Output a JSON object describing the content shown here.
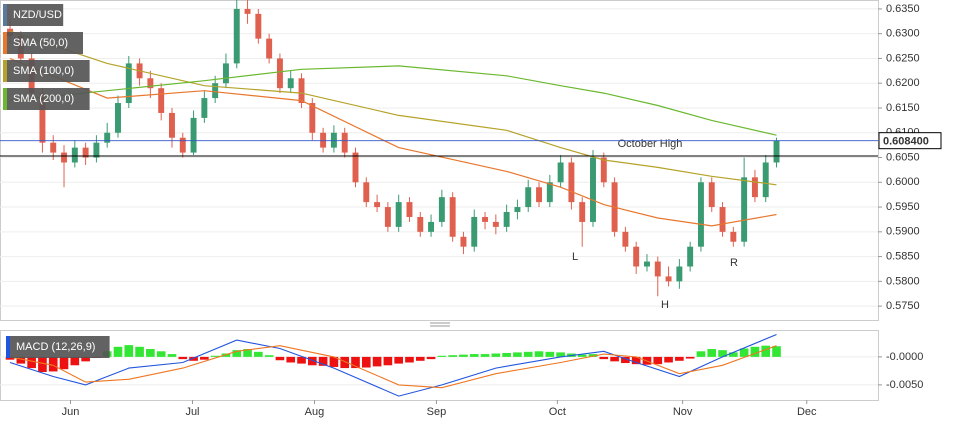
{
  "chart_data": [
    {
      "type": "candlestick",
      "xlim": [
        -0.93,
        80.4
      ],
      "ylim": [
        0.5722,
        0.6368
      ],
      "grid": true,
      "yticks": [
        {
          "value": 0.575,
          "label": "0.5750"
        },
        {
          "value": 0.58,
          "label": "0.5800"
        },
        {
          "value": 0.585,
          "label": "0.5850"
        },
        {
          "value": 0.59,
          "label": "0.5900"
        },
        {
          "value": 0.595,
          "label": "0.5950"
        },
        {
          "value": 0.6,
          "label": "0.6000"
        },
        {
          "value": 0.605,
          "label": "0.6050"
        },
        {
          "value": 0.61,
          "label": "0.6100"
        },
        {
          "value": 0.615,
          "label": "0.6150"
        },
        {
          "value": 0.62,
          "label": "0.6200"
        },
        {
          "value": 0.625,
          "label": "0.6250"
        },
        {
          "value": 0.63,
          "label": "0.6300"
        },
        {
          "value": 0.635,
          "label": "0.6350"
        }
      ],
      "series": [
        {
          "name": "NZD/USD",
          "type": "candlestick",
          "color": "#5b7a9a",
          "up_color": "#3a9a72",
          "down_color": "#e0604f",
          "ohlc": [
            [
              0.631,
              0.633,
              0.628,
              0.6295
            ],
            [
              0.6295,
              0.6305,
              0.624,
              0.625
            ],
            [
              0.625,
              0.626,
              0.617,
              0.618
            ],
            [
              0.618,
              0.619,
              0.606,
              0.608
            ],
            [
              0.608,
              0.6095,
              0.6045,
              0.606
            ],
            [
              0.606,
              0.6075,
              0.599,
              0.604
            ],
            [
              0.604,
              0.6085,
              0.603,
              0.607
            ],
            [
              0.607,
              0.608,
              0.6035,
              0.605
            ],
            [
              0.605,
              0.6095,
              0.604,
              0.608
            ],
            [
              0.608,
              0.612,
              0.607,
              0.61
            ],
            [
              0.61,
              0.6175,
              0.609,
              0.616
            ],
            [
              0.616,
              0.6255,
              0.615,
              0.624
            ],
            [
              0.624,
              0.625,
              0.6195,
              0.621
            ],
            [
              0.621,
              0.6225,
              0.617,
              0.619
            ],
            [
              0.619,
              0.62,
              0.6125,
              0.614
            ],
            [
              0.614,
              0.615,
              0.607,
              0.609
            ],
            [
              0.609,
              0.61,
              0.605,
              0.606
            ],
            [
              0.606,
              0.6145,
              0.6055,
              0.613
            ],
            [
              0.613,
              0.6185,
              0.612,
              0.617
            ],
            [
              0.617,
              0.6215,
              0.616,
              0.62
            ],
            [
              0.62,
              0.626,
              0.619,
              0.624
            ],
            [
              0.624,
              0.637,
              0.623,
              0.635
            ],
            [
              0.635,
              0.637,
              0.632,
              0.634
            ],
            [
              0.634,
              0.635,
              0.628,
              0.629
            ],
            [
              0.629,
              0.63,
              0.624,
              0.625
            ],
            [
              0.625,
              0.626,
              0.618,
              0.619
            ],
            [
              0.619,
              0.6225,
              0.618,
              0.621
            ],
            [
              0.621,
              0.622,
              0.615,
              0.616
            ],
            [
              0.616,
              0.617,
              0.6085,
              0.61
            ],
            [
              0.61,
              0.611,
              0.606,
              0.607
            ],
            [
              0.607,
              0.6115,
              0.606,
              0.61
            ],
            [
              0.61,
              0.611,
              0.605,
              0.606
            ],
            [
              0.606,
              0.607,
              0.599,
              0.6
            ],
            [
              0.6,
              0.601,
              0.595,
              0.596
            ],
            [
              0.596,
              0.5975,
              0.594,
              0.595
            ],
            [
              0.595,
              0.596,
              0.59,
              0.591
            ],
            [
              0.591,
              0.5975,
              0.59,
              0.596
            ],
            [
              0.596,
              0.597,
              0.592,
              0.593
            ],
            [
              0.593,
              0.594,
              0.589,
              0.59
            ],
            [
              0.59,
              0.5935,
              0.589,
              0.592
            ],
            [
              0.592,
              0.5985,
              0.591,
              0.597
            ],
            [
              0.597,
              0.598,
              0.588,
              0.589
            ],
            [
              0.589,
              0.59,
              0.5855,
              0.587
            ],
            [
              0.587,
              0.5945,
              0.586,
              0.593
            ],
            [
              0.593,
              0.594,
              0.5905,
              0.592
            ],
            [
              0.592,
              0.5935,
              0.5895,
              0.591
            ],
            [
              0.591,
              0.5955,
              0.59,
              0.594
            ],
            [
              0.594,
              0.5965,
              0.5925,
              0.595
            ],
            [
              0.595,
              0.6005,
              0.594,
              0.599
            ],
            [
              0.599,
              0.6,
              0.595,
              0.596
            ],
            [
              0.596,
              0.6015,
              0.595,
              0.6
            ],
            [
              0.6,
              0.6055,
              0.599,
              0.604
            ],
            [
              0.604,
              0.605,
              0.5945,
              0.596
            ],
            [
              0.596,
              0.597,
              0.587,
              0.592
            ],
            [
              0.592,
              0.6065,
              0.591,
              0.605
            ],
            [
              0.605,
              0.606,
              0.599,
              0.6
            ],
            [
              0.6,
              0.601,
              0.589,
              0.59
            ],
            [
              0.59,
              0.591,
              0.586,
              0.587
            ],
            [
              0.587,
              0.588,
              0.5815,
              0.583
            ],
            [
              0.583,
              0.5855,
              0.582,
              0.584
            ],
            [
              0.584,
              0.585,
              0.577,
              0.581
            ],
            [
              0.581,
              0.583,
              0.579,
              0.58
            ],
            [
              0.58,
              0.5845,
              0.5785,
              0.583
            ],
            [
              0.583,
              0.588,
              0.582,
              0.587
            ],
            [
              0.587,
              0.601,
              0.586,
              0.6
            ],
            [
              0.6,
              0.601,
              0.594,
              0.595
            ],
            [
              0.595,
              0.596,
              0.589,
              0.59
            ],
            [
              0.59,
              0.591,
              0.587,
              0.588
            ],
            [
              0.588,
              0.605,
              0.587,
              0.601
            ],
            [
              0.601,
              0.6025,
              0.596,
              0.597
            ],
            [
              0.597,
              0.6055,
              0.596,
              0.604
            ],
            [
              0.604,
              0.609,
              0.603,
              0.6084
            ]
          ]
        },
        {
          "name": "SMA (50,0)",
          "type": "line",
          "color": "#e8772e",
          "x": [
            0,
            9,
            18,
            27,
            36,
            46,
            51,
            55,
            60,
            65,
            71
          ],
          "values": [
            0.625,
            0.617,
            0.6185,
            0.6165,
            0.607,
            0.6022,
            0.599,
            0.5955,
            0.5928,
            0.5912,
            0.5935
          ]
        },
        {
          "name": "SMA (100,0)",
          "type": "line",
          "color": "#b5a228",
          "x": [
            0,
            9,
            18,
            27,
            36,
            46,
            51,
            55,
            60,
            65,
            71
          ],
          "values": [
            0.6305,
            0.624,
            0.6195,
            0.618,
            0.6135,
            0.6105,
            0.607,
            0.6045,
            0.603,
            0.6012,
            0.5995
          ]
        },
        {
          "name": "SMA (200,0)",
          "type": "line",
          "color": "#6ab82f",
          "x": [
            0,
            9,
            18,
            27,
            36,
            46,
            51,
            55,
            60,
            65,
            71
          ],
          "values": [
            0.6165,
            0.6185,
            0.6205,
            0.6228,
            0.6235,
            0.6215,
            0.6195,
            0.618,
            0.6155,
            0.6125,
            0.6095
          ]
        }
      ],
      "hlines": [
        {
          "label": "October High",
          "value": 0.6053,
          "color": "#000000"
        }
      ],
      "last_price": {
        "value": 0.6084,
        "value_label": "0.608400",
        "color": "#3355cc"
      },
      "annotations": [
        "L",
        "H",
        "R"
      ]
    },
    {
      "type": "macd",
      "name": "MACD (12,26,9)",
      "xlim": [
        -0.93,
        80.4
      ],
      "ylim": [
        -0.0077,
        0.0048
      ],
      "yticks": [
        {
          "value": 0,
          "label": "-0.0000"
        },
        {
          "value": -0.005,
          "label": "-0.0050"
        }
      ],
      "xticks": [
        {
          "value": 5.6,
          "label": "Jun"
        },
        {
          "value": 16.9,
          "label": "Jul"
        },
        {
          "value": 28.2,
          "label": "Aug"
        },
        {
          "value": 39.5,
          "label": "Sep"
        },
        {
          "value": 50.7,
          "label": "Oct"
        },
        {
          "value": 62.3,
          "label": "Nov"
        },
        {
          "value": 73.8,
          "label": "Dec"
        }
      ],
      "histogram": {
        "up_color": "#33e633",
        "down_color": "#ee1111",
        "values": [
          -0.0005,
          -0.0012,
          -0.002,
          -0.0027,
          -0.0026,
          -0.0022,
          -0.0015,
          -0.0008,
          -0.0002,
          0.001,
          0.0018,
          0.0021,
          0.0018,
          0.0014,
          0.001,
          0.0005,
          -0.0004,
          -0.0007,
          -0.0005,
          0.0002,
          0.0006,
          0.0012,
          0.0014,
          0.0009,
          0.0003,
          -0.0006,
          -0.001,
          -0.0012,
          -0.0015,
          -0.0016,
          -0.0018,
          -0.002,
          -0.002,
          -0.0019,
          -0.0017,
          -0.0015,
          -0.0012,
          -0.001,
          -0.0007,
          -0.0004,
          0.0002,
          0.0003,
          0.0004,
          0.0005,
          0.0005,
          0.0006,
          0.0007,
          0.0008,
          0.0009,
          0.001,
          0.0009,
          0.0008,
          0.0006,
          0.0004,
          0.0005,
          -0.0004,
          -0.0008,
          -0.0011,
          -0.0013,
          -0.0014,
          -0.0013,
          -0.001,
          -0.0007,
          -0.0003,
          0.001,
          0.0014,
          0.0012,
          0.0008,
          0.0015,
          0.0018,
          0.002,
          0.0019
        ]
      },
      "lines": [
        {
          "color": "#2255dd",
          "x": [
            0,
            4,
            7,
            11,
            16,
            21,
            25,
            30,
            36,
            40,
            45,
            51,
            55,
            58,
            62,
            66,
            71
          ],
          "values": [
            -0.001,
            -0.0035,
            -0.005,
            -0.002,
            -0.001,
            0.003,
            0.0015,
            -0.002,
            -0.007,
            -0.005,
            -0.002,
            0,
            0.001,
            -0.001,
            -0.0035,
            0,
            0.004
          ]
        },
        {
          "color": "#ee7722",
          "x": [
            0,
            4,
            7,
            11,
            16,
            21,
            25,
            30,
            36,
            40,
            45,
            51,
            55,
            58,
            62,
            66,
            71
          ],
          "values": [
            0,
            -0.0015,
            -0.0045,
            -0.004,
            -0.002,
            0.001,
            0.002,
            0,
            -0.005,
            -0.0055,
            -0.003,
            -0.001,
            0.0005,
            0,
            -0.003,
            -0.0015,
            0.002
          ]
        }
      ]
    }
  ]
}
